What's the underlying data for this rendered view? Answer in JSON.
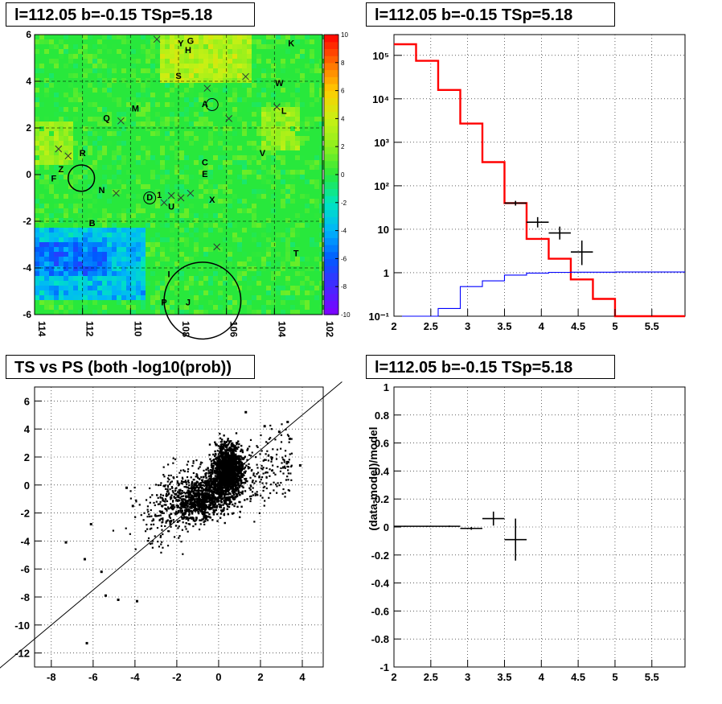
{
  "panels": {
    "skymap_title": "l=112.05 b=-0.15 TSp=5.18",
    "spectrum_title": "l=112.05 b=-0.15 TSp=5.18",
    "scatter_title": "TS vs PS (both -log10(prob))",
    "residual_title": "l=112.05 b=-0.15 TSp=5.18"
  },
  "colors": {
    "model_line": "#ff0000",
    "background_line": "#0000ff",
    "data_points": "#000000",
    "grid": "#000000"
  },
  "chart_data": [
    {
      "type": "heatmap",
      "title": "l=112.05 b=-0.15 TSp=5.18",
      "xlim": [
        114,
        102
      ],
      "ylim": [
        -6,
        6
      ],
      "x_ticks": [
        "114",
        "112",
        "110",
        "108",
        "106",
        "104",
        "102"
      ],
      "y_ticks": [
        "-6",
        "-4",
        "-2",
        "0",
        "2",
        "4",
        "6"
      ],
      "colorbar_range": [
        -10,
        10
      ],
      "colorbar_ticks": [
        "-10",
        "-8",
        "-6",
        "-4",
        "-2",
        "0",
        "2",
        "4",
        "6",
        "8",
        "10"
      ],
      "source_labels": [
        {
          "label": "K",
          "l": 103.3,
          "b": 5.6
        },
        {
          "label": "Y",
          "l": 107.9,
          "b": 5.6
        },
        {
          "label": "G",
          "l": 107.5,
          "b": 5.7
        },
        {
          "label": "H",
          "l": 107.6,
          "b": 5.3
        },
        {
          "label": "S",
          "l": 108.0,
          "b": 4.2
        },
        {
          "label": "W",
          "l": 103.8,
          "b": 3.9
        },
        {
          "label": "A",
          "l": 106.9,
          "b": 3.0
        },
        {
          "label": "L",
          "l": 103.6,
          "b": 2.7
        },
        {
          "label": "M",
          "l": 109.8,
          "b": 2.8
        },
        {
          "label": "Q",
          "l": 111.0,
          "b": 2.4
        },
        {
          "label": "V",
          "l": 104.5,
          "b": 0.9
        },
        {
          "label": "R",
          "l": 112.0,
          "b": 0.9
        },
        {
          "label": "C",
          "l": 106.9,
          "b": 0.5
        },
        {
          "label": "E",
          "l": 106.9,
          "b": -0.0
        },
        {
          "label": "Z",
          "l": 112.9,
          "b": 0.2
        },
        {
          "label": "F",
          "l": 113.2,
          "b": -0.2
        },
        {
          "label": "N",
          "l": 111.2,
          "b": -0.7
        },
        {
          "label": "D",
          "l": 109.2,
          "b": -1.0
        },
        {
          "label": "1",
          "l": 108.8,
          "b": -0.9
        },
        {
          "label": "U",
          "l": 108.3,
          "b": -1.4
        },
        {
          "label": "X",
          "l": 106.6,
          "b": -1.1
        },
        {
          "label": "B",
          "l": 111.6,
          "b": -2.1
        },
        {
          "label": "T",
          "l": 103.1,
          "b": -3.4
        },
        {
          "label": "I",
          "l": 108.4,
          "b": -4.3
        },
        {
          "label": "P",
          "l": 108.6,
          "b": -5.5
        },
        {
          "label": "J",
          "l": 107.6,
          "b": -5.5
        }
      ],
      "circles": [
        {
          "l": 112.05,
          "b": -0.15,
          "radius_deg": 0.55
        },
        {
          "l": 109.2,
          "b": -1.0,
          "radius_deg": 0.25
        },
        {
          "l": 106.6,
          "b": 3.0,
          "radius_deg": 0.25
        },
        {
          "l": 107.0,
          "b": -5.4,
          "radius_deg": 1.6
        }
      ],
      "crosses": [
        {
          "l": 108.9,
          "b": 5.8
        },
        {
          "l": 105.2,
          "b": 4.2
        },
        {
          "l": 106.8,
          "b": 3.7
        },
        {
          "l": 103.9,
          "b": 2.9
        },
        {
          "l": 105.9,
          "b": 2.4
        },
        {
          "l": 110.4,
          "b": 2.3
        },
        {
          "l": 113.0,
          "b": 1.1
        },
        {
          "l": 112.6,
          "b": 0.8
        },
        {
          "l": 110.6,
          "b": -0.8
        },
        {
          "l": 108.3,
          "b": -0.9
        },
        {
          "l": 107.9,
          "b": -1.0
        },
        {
          "l": 107.5,
          "b": -0.8
        },
        {
          "l": 108.6,
          "b": -1.2
        },
        {
          "l": 106.4,
          "b": -3.1
        }
      ]
    },
    {
      "type": "line",
      "title": "l=112.05 b=-0.15 TSp=5.18",
      "xlim": [
        2,
        5.95
      ],
      "ylim": [
        0.1,
        300000
      ],
      "yscale": "log",
      "grid": true,
      "x_ticks": [
        "2",
        "2.5",
        "3",
        "3.5",
        "4",
        "4.5",
        "5",
        "5.5"
      ],
      "y_ticks": [
        "10⁻¹",
        "1",
        "10",
        "10²",
        "10³",
        "10⁴",
        "10⁵"
      ],
      "series": [
        {
          "edges": [
            2.0,
            2.3,
            2.6,
            2.9,
            3.2,
            3.5,
            3.8,
            4.1,
            4.4,
            4.7,
            5.0,
            5.95
          ],
          "values": [
            180000,
            75000,
            16000,
            2700,
            350,
            40,
            6,
            2.1,
            0.7,
            0.25,
            0.1
          ]
        },
        {
          "edges": [
            2.0,
            2.3,
            2.6,
            2.9,
            3.2,
            3.5,
            3.8,
            4.1,
            4.4,
            4.7,
            5.0,
            5.95
          ],
          "values": [
            0.05,
            0.1,
            0.15,
            0.48,
            0.65,
            0.88,
            0.98,
            1.02,
            1.03,
            1.03,
            1.04
          ]
        }
      ],
      "data_points": [
        {
          "x": 3.65,
          "y": 40,
          "xerr": 0.15,
          "ylo": 35,
          "yhi": 45
        },
        {
          "x": 3.95,
          "y": 14.5,
          "xerr": 0.15,
          "ylo": 11,
          "yhi": 19
        },
        {
          "x": 4.25,
          "y": 8.2,
          "xerr": 0.15,
          "ylo": 5.8,
          "yhi": 11.5
        },
        {
          "x": 4.55,
          "y": 3.0,
          "xerr": 0.15,
          "ylo": 1.5,
          "yhi": 5.5
        }
      ]
    },
    {
      "type": "scatter",
      "title": "TS vs PS (both -log10(prob))",
      "xlim": [
        -8.8,
        5
      ],
      "ylim": [
        -13,
        7
      ],
      "grid": true,
      "x_ticks": [
        "-8",
        "-6",
        "-4",
        "-2",
        "0",
        "2",
        "4"
      ],
      "y_ticks": [
        "-12",
        "-10",
        "-8",
        "-6",
        "-4",
        "-2",
        "0",
        "2",
        "4",
        "6"
      ],
      "reference_line": {
        "slope": 1.25,
        "intercept": 0.0
      },
      "outliers": [
        {
          "x": -6.3,
          "y": -11.3
        },
        {
          "x": -4.8,
          "y": -8.2
        },
        {
          "x": -3.9,
          "y": -8.3
        },
        {
          "x": -5.4,
          "y": -7.9
        },
        {
          "x": -7.3,
          "y": -4.1
        },
        {
          "x": -6.4,
          "y": -5.3
        },
        {
          "x": -6.1,
          "y": -2.8
        },
        {
          "x": -4.1,
          "y": -1.5
        },
        {
          "x": -4.4,
          "y": -0.2
        },
        {
          "x": -5.6,
          "y": -6.2
        },
        {
          "x": 3.9,
          "y": 1.4
        },
        {
          "x": 3.3,
          "y": 4.5
        },
        {
          "x": 3.4,
          "y": 3.3
        },
        {
          "x": 2.9,
          "y": 3.8
        },
        {
          "x": 1.3,
          "y": 5.2
        },
        {
          "x": 2.2,
          "y": 4.2
        }
      ]
    },
    {
      "type": "line",
      "title": "l=112.05 b=-0.15 TSp=5.18",
      "xlim": [
        2,
        5.95
      ],
      "ylim": [
        -1,
        1
      ],
      "ylabel": "(data-model)/model",
      "grid": true,
      "x_ticks": [
        "2",
        "2.5",
        "3",
        "3.5",
        "4",
        "4.5",
        "5",
        "5.5"
      ],
      "y_ticks": [
        "-1",
        "-0.8",
        "-0.6",
        "-0.4",
        "-0.2",
        "0",
        "0.2",
        "0.4",
        "0.6",
        "0.8",
        "1"
      ],
      "data_points": [
        {
          "x": 2.15,
          "y": 0.005,
          "xerr": 0.15,
          "yerr": 0.004
        },
        {
          "x": 2.45,
          "y": 0.005,
          "xerr": 0.15,
          "yerr": 0.004
        },
        {
          "x": 2.75,
          "y": 0.005,
          "xerr": 0.15,
          "yerr": 0.005
        },
        {
          "x": 3.05,
          "y": -0.01,
          "xerr": 0.15,
          "yerr": 0.01
        },
        {
          "x": 3.35,
          "y": 0.06,
          "xerr": 0.15,
          "yerr": 0.05
        },
        {
          "x": 3.65,
          "y": -0.09,
          "xerr": 0.15,
          "yerr": 0.15
        }
      ]
    }
  ]
}
